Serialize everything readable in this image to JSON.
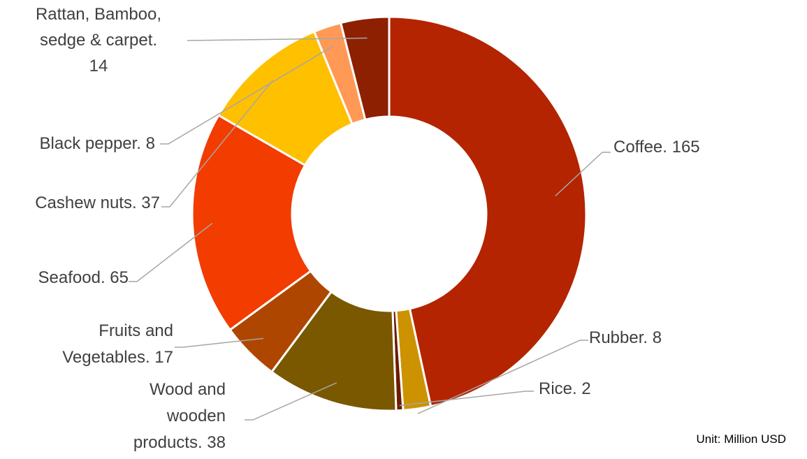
{
  "chart_data": {
    "type": "pie",
    "donut": true,
    "unit_note": "Unit: Million USD",
    "slices": [
      {
        "name": "Coffee",
        "value": 165,
        "label": "Coffee.  165",
        "color": "#B42400"
      },
      {
        "name": "Rubber",
        "value": 8,
        "label": "Rubber.  8",
        "color": "#CC9200"
      },
      {
        "name": "Rice",
        "value": 2,
        "label": "Rice.  2",
        "color": "#6E1A00"
      },
      {
        "name": "Wood and wooden products",
        "value": 38,
        "label": [
          "Wood and",
          "wooden",
          "products.  38"
        ],
        "color": "#7A5800"
      },
      {
        "name": "Fruits and Vegetables",
        "value": 17,
        "label": [
          "Fruits and",
          "Vegetables.  17"
        ],
        "color": "#AE4600"
      },
      {
        "name": "Seafood",
        "value": 65,
        "label": "Seafood.  65",
        "color": "#F23C00"
      },
      {
        "name": "Cashew nuts",
        "value": 37,
        "label": "Cashew nuts.  37",
        "color": "#FFC000"
      },
      {
        "name": "Black pepper",
        "value": 8,
        "label": "Black pepper.  8",
        "color": "#FF9955"
      },
      {
        "name": "Rattan, Bamboo, sedge & carpet",
        "value": 14,
        "label": [
          "Rattan, Bamboo,",
          "sedge & carpet.",
          "14"
        ],
        "color": "#8C2000"
      }
    ]
  }
}
